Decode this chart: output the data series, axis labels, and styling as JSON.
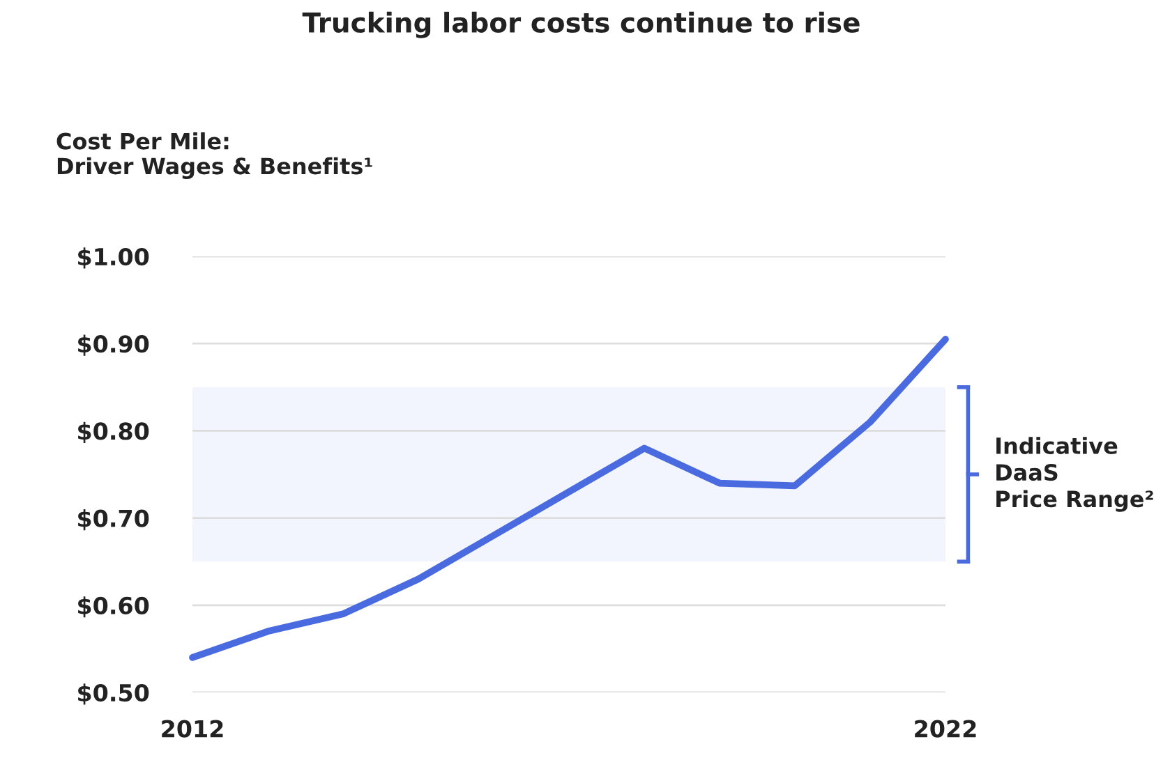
{
  "chart_data": {
    "type": "line",
    "title": "Trucking labor costs continue to rise",
    "ylabel": "Cost Per Mile:\nDriver Wages & Benefits¹",
    "x": [
      2012,
      2013,
      2014,
      2015,
      2016,
      2017,
      2018,
      2019,
      2020,
      2021,
      2022
    ],
    "series": [
      {
        "color": "#4a6bdf",
        "values": [
          0.54,
          0.57,
          0.59,
          0.63,
          0.68,
          0.73,
          0.78,
          0.74,
          0.737,
          0.81,
          0.905
        ]
      }
    ],
    "xlim": [
      2012,
      2022
    ],
    "xticks": [
      2012,
      2022
    ],
    "ylim": [
      0.5,
      1.0
    ],
    "yticks": [
      {
        "value": 0.5,
        "label": "$0.50"
      },
      {
        "value": 0.6,
        "label": "$0.60"
      },
      {
        "value": 0.7,
        "label": "$0.70"
      },
      {
        "value": 0.8,
        "label": "$0.80"
      },
      {
        "value": 0.9,
        "label": "$0.90"
      },
      {
        "value": 1.0,
        "label": "$1.00"
      }
    ],
    "bands": [
      {
        "axis": "y",
        "from": 0.65,
        "to": 0.85,
        "label": "Indicative\nDaaS\nPrice Range²",
        "color": "#4a6bdf"
      }
    ],
    "grid": "y",
    "marker": "none",
    "line_style": "solid",
    "legend": false
  }
}
